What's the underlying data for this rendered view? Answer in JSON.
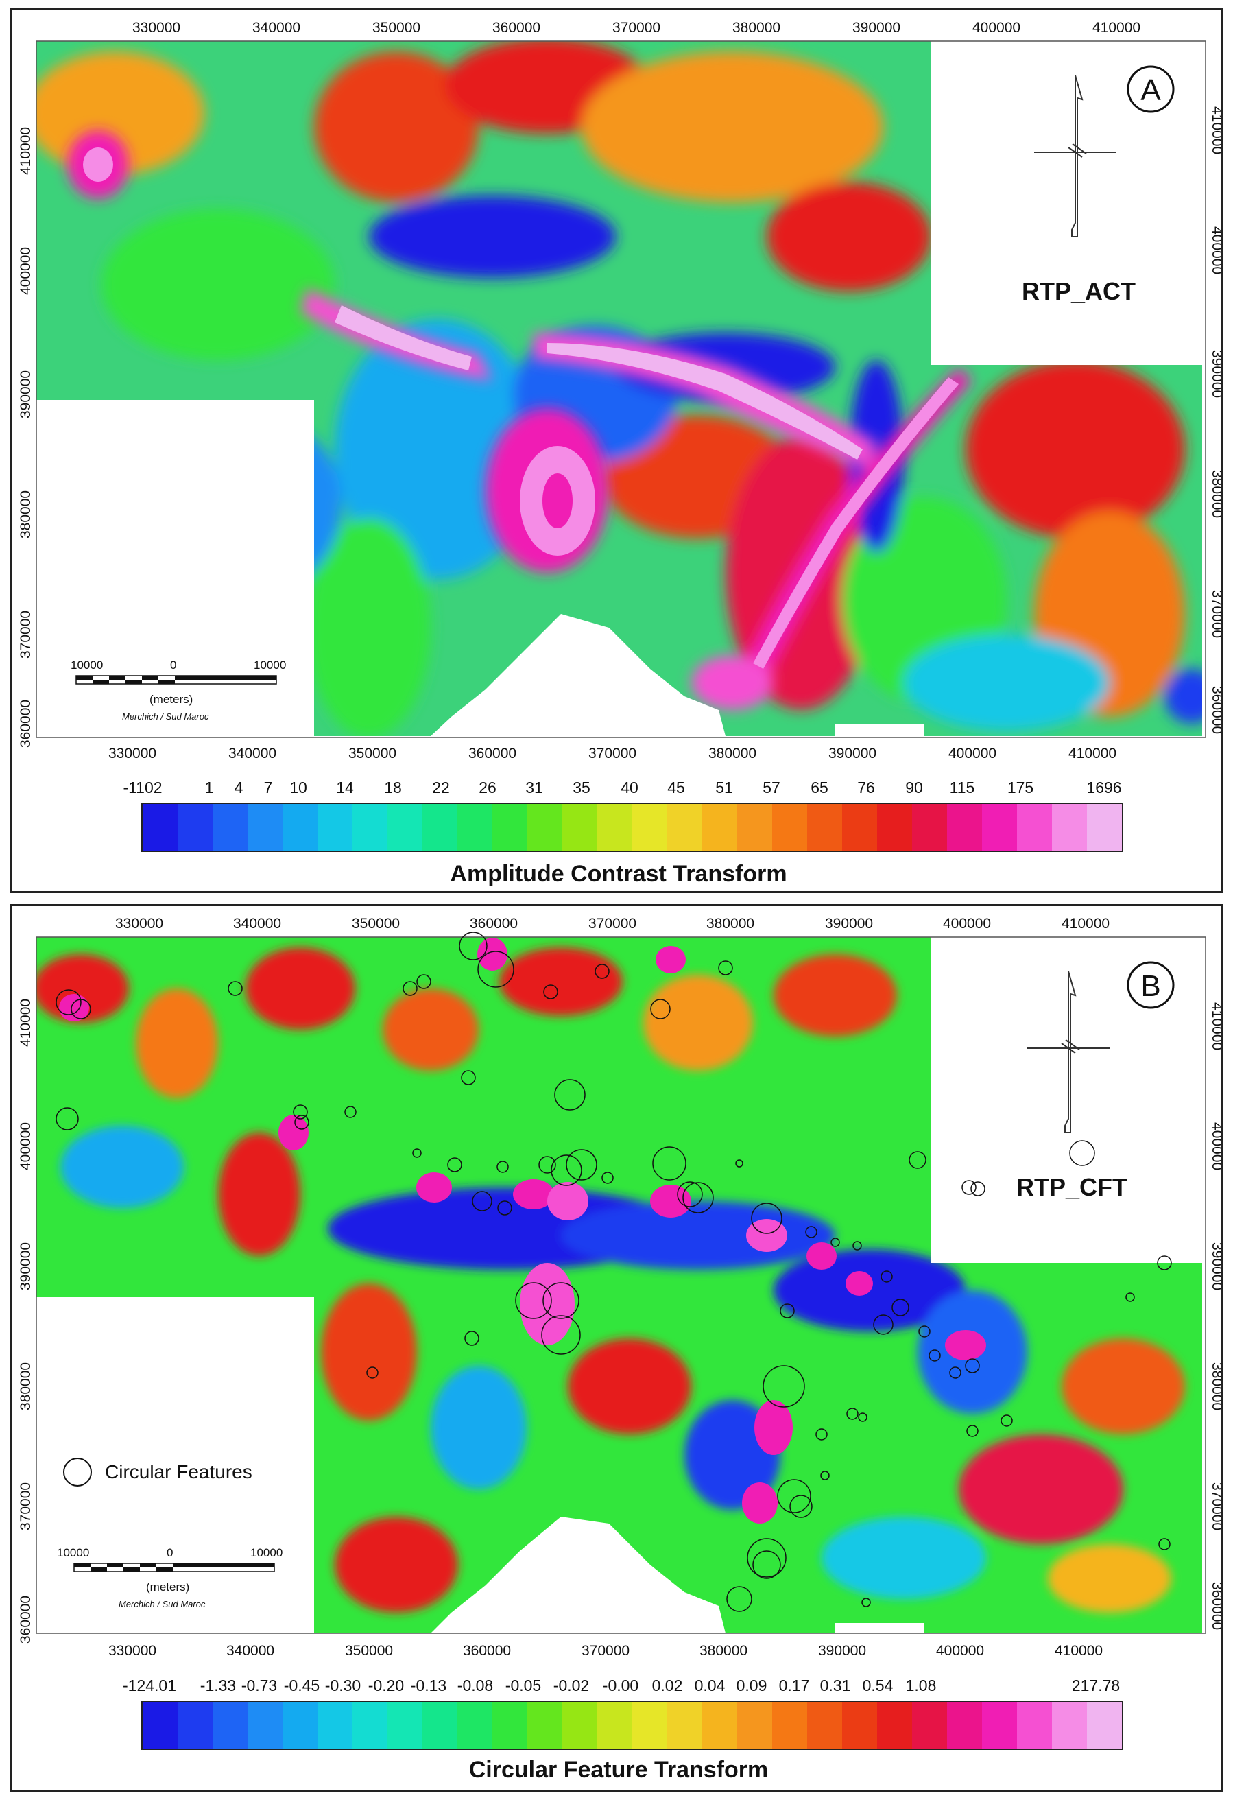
{
  "panel_a": {
    "letter": "A",
    "map_label": "RTP_ACT",
    "x_ticks": [
      "330000",
      "340000",
      "350000",
      "360000",
      "370000",
      "380000",
      "390000",
      "400000",
      "410000"
    ],
    "y_ticks": [
      "410000",
      "400000",
      "390000",
      "380000",
      "370000",
      "360000"
    ],
    "scale_bar": {
      "left": "10000",
      "middle": "0",
      "right": "10000",
      "unit": "(meters)",
      "projection": "Merchich / Sud Maroc"
    },
    "colorbar": {
      "title": "Amplitude Contrast Transform",
      "labels": [
        "-1102",
        "1",
        "4",
        "7",
        "10",
        "14",
        "18",
        "22",
        "26",
        "31",
        "35",
        "40",
        "45",
        "51",
        "57",
        "65",
        "76",
        "90",
        "115",
        "175",
        "1696"
      ],
      "colors": [
        "#1a1ae6",
        "#1e3cf0",
        "#1e64f5",
        "#1e8cf5",
        "#14aaf0",
        "#14c8e6",
        "#14dcd2",
        "#14e6b4",
        "#14e68c",
        "#1ee664",
        "#32e63c",
        "#64e61e",
        "#96e614",
        "#c8e61e",
        "#e6e628",
        "#f0d228",
        "#f5b41e",
        "#f5961e",
        "#f57814",
        "#f05a14",
        "#eb3c14",
        "#e61e1e",
        "#e61446",
        "#eb148c",
        "#f01eb4",
        "#f550d2",
        "#f58ce6",
        "#f0b4f0"
      ]
    }
  },
  "panel_b": {
    "letter": "B",
    "map_label": "RTP_CFT",
    "x_ticks": [
      "330000",
      "340000",
      "350000",
      "360000",
      "370000",
      "380000",
      "390000",
      "400000",
      "410000"
    ],
    "y_ticks": [
      "410000",
      "400000",
      "390000",
      "380000",
      "370000",
      "360000"
    ],
    "legend_label": "Circular Features",
    "scale_bar": {
      "left": "10000",
      "middle": "0",
      "right": "10000",
      "unit": "(meters)",
      "projection": "Merchich / Sud Maroc"
    },
    "colorbar": {
      "title": "Circular Feature Transform",
      "labels": [
        "-124.01",
        "-1.33",
        "-0.73",
        "-0.45",
        "-0.30",
        "-0.20",
        "-0.13",
        "-0.08",
        "-0.05",
        "-0.02",
        "-0.00",
        "0.02",
        "0.04",
        "0.09",
        "0.17",
        "0.31",
        "0.54",
        "1.08",
        "217.78"
      ],
      "colors": [
        "#1a1ae6",
        "#1e3cf0",
        "#1e64f5",
        "#1e8cf5",
        "#14aaf0",
        "#14c8e6",
        "#14dcd2",
        "#14e6b4",
        "#14e68c",
        "#1ee664",
        "#32e63c",
        "#64e61e",
        "#96e614",
        "#c8e61e",
        "#e6e628",
        "#f0d228",
        "#f5b41e",
        "#f5961e",
        "#f57814",
        "#f05a14",
        "#eb3c14",
        "#e61e1e",
        "#e61446",
        "#eb148c",
        "#f01eb4",
        "#f550d2",
        "#f58ce6",
        "#f0b4f0"
      ]
    }
  }
}
